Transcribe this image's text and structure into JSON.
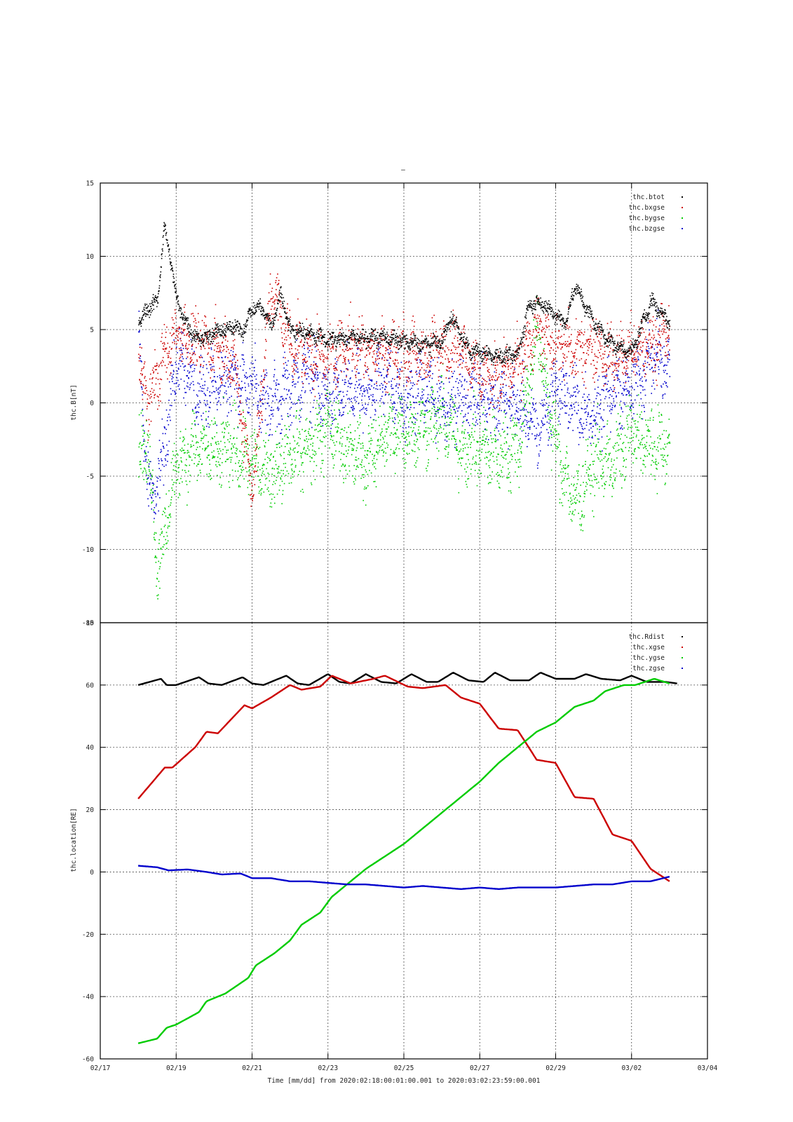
{
  "page": {
    "top_mark": "–"
  },
  "colors": {
    "btot": "#000000",
    "bx": "#cc0000",
    "by": "#00cc00",
    "bz": "#0000cc"
  },
  "chart_data": [
    {
      "type": "scatter",
      "title": "",
      "xlabel": "",
      "ylabel": "thc.B[nT]",
      "ylim": [
        -15,
        15
      ],
      "yticks": [
        15,
        10,
        5,
        0,
        -5,
        -10,
        -15
      ],
      "xlim_days": [
        0,
        16
      ],
      "grid": true,
      "legend": "top-right",
      "series": [
        {
          "name": "thc.btot",
          "color": "#000000",
          "x": [
            "02/18",
            "02/18 06h",
            "02/18 12h",
            "02/18 16h",
            "02/18 20h",
            "02/19",
            "02/19 06h",
            "02/19 12h",
            "02/19 18h",
            "02/20",
            "02/20 12h",
            "02/20 18h",
            "02/21",
            "02/21 06h",
            "02/21 12h",
            "02/21 18h",
            "02/22",
            "02/22 12h",
            "02/23",
            "02/23 12h",
            "02/24",
            "02/24 12h",
            "02/25",
            "02/25 12h",
            "02/26",
            "02/26 06h",
            "02/26 12h",
            "02/26 18h",
            "02/27",
            "02/27 12h",
            "02/28",
            "02/28 06h",
            "02/28 12h",
            "02/29",
            "02/29 06h",
            "02/29 12h",
            "03/01",
            "03/01 12h",
            "03/02",
            "03/02 12h",
            "03/03"
          ],
          "y": [
            5.5,
            6.5,
            7,
            12,
            10,
            7,
            5.5,
            4.5,
            4.5,
            4.8,
            5.2,
            5,
            6.5,
            6.5,
            5.2,
            7.5,
            5,
            4.8,
            4.3,
            4.5,
            4.5,
            4.5,
            4.2,
            4.0,
            4.2,
            6,
            4.5,
            3.5,
            3.5,
            3.2,
            3.3,
            6.5,
            7,
            6,
            5.5,
            8,
            5.5,
            4,
            3.5,
            7,
            5.5
          ]
        },
        {
          "name": "thc.bxgse",
          "color": "#cc0000",
          "x": [
            "02/18",
            "02/18 06h",
            "02/18 12h",
            "02/19",
            "02/19 12h",
            "02/20",
            "02/20 12h",
            "02/21",
            "02/21 12h",
            "02/22",
            "02/22 12h",
            "02/23",
            "02/23 12h",
            "02/24",
            "02/24 12h",
            "02/25",
            "02/25 12h",
            "02/26",
            "02/26 12h",
            "02/27",
            "02/27 12h",
            "02/28",
            "02/28 12h",
            "02/29",
            "02/29 12h",
            "03/01",
            "03/01 12h",
            "03/02",
            "03/02 12h",
            "03/03"
          ],
          "y": [
            3,
            0,
            2,
            5,
            4,
            4,
            3,
            -6,
            8,
            4,
            3.5,
            3,
            4,
            3.8,
            3.5,
            3.5,
            3.2,
            4,
            4,
            2,
            2,
            2.5,
            5,
            4,
            3.5,
            4,
            3,
            3.5,
            4,
            5
          ]
        },
        {
          "name": "thc.bygse",
          "color": "#00cc00",
          "x": [
            "02/18",
            "02/18 06h",
            "02/18 12h",
            "02/18 18h",
            "02/19",
            "02/19 12h",
            "02/20",
            "02/20 12h",
            "02/21",
            "02/21 12h",
            "02/22",
            "02/22 12h",
            "02/23",
            "02/23 12h",
            "02/24",
            "02/24 12h",
            "02/25",
            "02/25 12h",
            "02/26",
            "02/26 12h",
            "02/27",
            "02/27 12h",
            "02/28",
            "02/28 12h",
            "02/29",
            "02/29 12h",
            "03/01",
            "03/01 12h",
            "03/02",
            "03/02 12h",
            "03/03"
          ],
          "y": [
            -3.5,
            -3,
            -11,
            -8,
            -4,
            -3,
            -3.5,
            -3,
            -4,
            -5,
            -3,
            -3,
            -1.5,
            -3,
            -4,
            -2,
            -2,
            -1.5,
            -1,
            -3,
            -3,
            -3.5,
            -3,
            5,
            -3,
            -7,
            -4,
            -4,
            -2,
            -3,
            -3
          ]
        },
        {
          "name": "thc.bzgse",
          "color": "#0000cc",
          "x": [
            "02/18",
            "02/18 06h",
            "02/18 12h",
            "02/19",
            "02/19 12h",
            "02/20",
            "02/20 12h",
            "02/21",
            "02/21 12h",
            "02/22",
            "02/22 12h",
            "02/23",
            "02/23 12h",
            "02/24",
            "02/24 12h",
            "02/25",
            "02/25 12h",
            "02/26",
            "02/26 12h",
            "02/27",
            "02/27 12h",
            "02/28",
            "02/28 12h",
            "02/29",
            "02/29 12h",
            "03/01",
            "03/01 12h",
            "03/02",
            "03/02 12h",
            "03/03"
          ],
          "y": [
            4,
            -6,
            -6,
            3,
            1,
            1,
            2,
            1,
            0,
            1,
            2,
            0,
            1,
            0.5,
            2,
            0,
            1,
            0,
            0.5,
            0.5,
            0,
            0,
            -2,
            1,
            0,
            -1,
            1,
            1,
            3,
            3
          ]
        }
      ]
    },
    {
      "type": "line",
      "title": "",
      "ylabel": "thc.location[RE]",
      "xlabel": "Time [mm/dd]  from 2020:02:18:00:01:00.001  to  2020:03:02:23:59:00.001",
      "ylim": [
        -60,
        80
      ],
      "yticks": [
        80,
        60,
        40,
        20,
        0,
        -20,
        -40,
        -60
      ],
      "xticks": [
        "02/17",
        "02/19",
        "02/21",
        "02/23",
        "02/25",
        "02/27",
        "02/29",
        "03/02",
        "03/04"
      ],
      "xlim_days": [
        0,
        16
      ],
      "grid": true,
      "legend": "top-right",
      "series": [
        {
          "name": "thc.Rdist",
          "color": "#000000",
          "x": [
            1.0,
            1.6,
            1.75,
            2.0,
            2.6,
            2.85,
            3.2,
            3.75,
            4.0,
            4.3,
            4.9,
            5.2,
            5.5,
            6.0,
            6.3,
            6.6,
            7.0,
            7.4,
            7.8,
            8.2,
            8.6,
            8.9,
            9.3,
            9.7,
            10.1,
            10.4,
            10.8,
            11.3,
            11.6,
            12.0,
            12.5,
            12.8,
            13.2,
            13.7,
            14.0,
            14.4,
            14.9,
            15.2
          ],
          "y": [
            60,
            62,
            60,
            60,
            62.5,
            60.5,
            60,
            62.5,
            60.5,
            60,
            63,
            60.5,
            60,
            63.5,
            61,
            60.5,
            63.5,
            61,
            60.5,
            63.5,
            61,
            61,
            64,
            61.5,
            61,
            64,
            61.5,
            61.5,
            64,
            62,
            62,
            63.5,
            62,
            61.5,
            63,
            61,
            61,
            60.5
          ]
        },
        {
          "name": "thc.xgse",
          "color": "#cc0000",
          "x": [
            1.0,
            1.7,
            1.9,
            2.5,
            2.8,
            3.1,
            3.8,
            4.0,
            4.5,
            5.0,
            5.3,
            5.8,
            6.1,
            6.6,
            7.2,
            7.5,
            8.1,
            8.5,
            9.1,
            9.5,
            10.0,
            10.5,
            11.0,
            11.5,
            12.0,
            12.5,
            13.0,
            13.5,
            14.0,
            14.5,
            15.0
          ],
          "y": [
            23.5,
            33.5,
            33.5,
            40,
            45,
            44.5,
            53.5,
            52.5,
            56,
            60,
            58.5,
            59.5,
            63,
            60.5,
            62,
            63,
            59.5,
            59,
            60,
            56,
            54,
            46,
            45.5,
            36,
            35,
            24,
            23.5,
            12,
            10,
            1,
            -3
          ]
        },
        {
          "name": "thc.ygse",
          "color": "#00cc00",
          "x": [
            1.0,
            1.5,
            1.75,
            2.0,
            2.6,
            2.8,
            3.3,
            3.9,
            4.1,
            4.6,
            5.0,
            5.3,
            5.8,
            6.1,
            6.5,
            7.0,
            7.5,
            8.0,
            8.5,
            9.0,
            9.5,
            10.0,
            10.5,
            11.0,
            11.5,
            12.0,
            12.5,
            13.0,
            13.3,
            13.8,
            14.1,
            14.6,
            15.0
          ],
          "y": [
            -55,
            -53.5,
            -50,
            -49,
            -45,
            -41.5,
            -39,
            -34,
            -30,
            -26,
            -22,
            -17,
            -13,
            -8,
            -4,
            1,
            5,
            9,
            14,
            19,
            24,
            29,
            35,
            40,
            45,
            48,
            53,
            55,
            58,
            60,
            60,
            62,
            60.5
          ]
        },
        {
          "name": "thc.zgse",
          "color": "#0000cc",
          "x": [
            1.0,
            1.5,
            1.8,
            2.3,
            2.8,
            3.2,
            3.7,
            4.0,
            4.5,
            5.0,
            5.5,
            6.0,
            6.5,
            7.0,
            7.5,
            8.0,
            8.5,
            9.0,
            9.5,
            10.0,
            10.5,
            11.0,
            11.5,
            12.0,
            12.5,
            13.0,
            13.5,
            14.0,
            14.5,
            15.0
          ],
          "y": [
            2,
            1.5,
            0.5,
            0.8,
            0,
            -0.8,
            -0.5,
            -2,
            -2,
            -3,
            -3,
            -3.5,
            -4,
            -4,
            -4.5,
            -5,
            -4.5,
            -5,
            -5.5,
            -5,
            -5.5,
            -5,
            -5,
            -5,
            -4.5,
            -4,
            -4,
            -3,
            -3,
            -1.5
          ]
        }
      ]
    }
  ],
  "legend1": [
    "thc.btot",
    "thc.bxgse",
    "thc.bygse",
    "thc.bzgse"
  ],
  "legend2": [
    "thc.Rdist",
    "thc.xgse",
    "thc.ygse",
    "thc.zgse"
  ]
}
